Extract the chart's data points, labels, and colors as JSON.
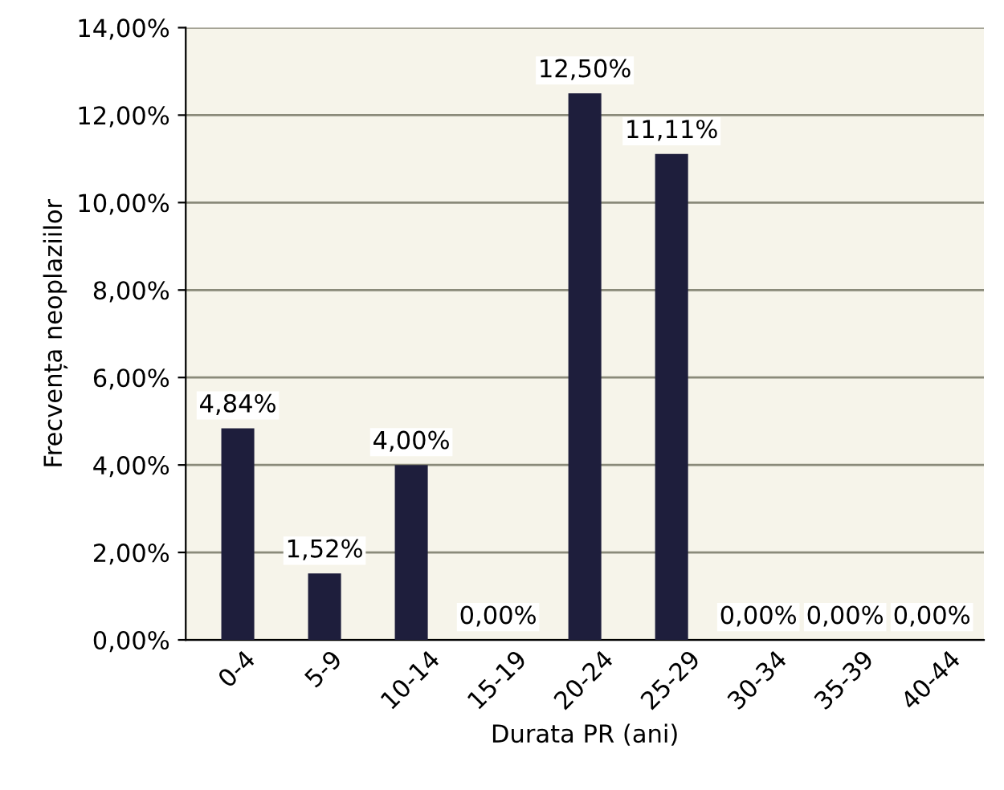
{
  "chart_data": {
    "type": "bar",
    "xlabel": "Durata PR (ani)",
    "ylabel": "Frecvența neoplaziilor",
    "categories": [
      "0-4",
      "5-9",
      "10-14",
      "15-19",
      "20-24",
      "25-29",
      "30-34",
      "35-39",
      "40-44"
    ],
    "values": [
      4.84,
      1.52,
      4.0,
      0,
      12.5,
      11.11,
      0,
      0,
      0
    ],
    "value_labels": [
      "4,84%",
      "1,52%",
      "4,00%",
      "0,00%",
      "12,50%",
      "11,11%",
      "0,00%",
      "0,00%",
      "0,00%"
    ],
    "color": "#1e1e3c",
    "ylim": [
      0,
      14
    ],
    "yticks": [
      {
        "value": 0,
        "label": "0,00%"
      },
      {
        "value": 2,
        "label": "2,00%"
      },
      {
        "value": 4,
        "label": "4,00%"
      },
      {
        "value": 6,
        "label": "6,00%"
      },
      {
        "value": 8,
        "label": "8,00%"
      },
      {
        "value": 10,
        "label": "10,00%"
      },
      {
        "value": 12,
        "label": "12,00%"
      },
      {
        "value": 14,
        "label": "14,00%"
      }
    ],
    "grid": "y"
  }
}
